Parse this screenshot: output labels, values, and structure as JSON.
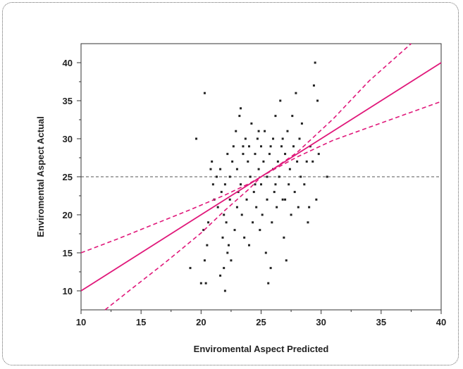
{
  "chart_data": {
    "type": "scatter",
    "title": "",
    "xlabel": "Enviromental Aspect Predicted",
    "ylabel": "Enviromental Aspect  Actual",
    "xlim": [
      10,
      40
    ],
    "ylim": [
      7.5,
      42.5
    ],
    "x_ticks": [
      10,
      15,
      20,
      25,
      30,
      35,
      40
    ],
    "y_ticks": [
      10,
      15,
      20,
      25,
      30,
      35,
      40
    ],
    "grid": false,
    "mean_reference_y": 25,
    "fit_line": {
      "x": [
        10,
        40
      ],
      "y": [
        10,
        40
      ]
    },
    "confidence_band_upper": {
      "x": [
        10,
        13,
        16,
        19,
        22,
        24,
        25,
        26,
        28,
        31,
        34,
        37.5
      ],
      "y": [
        15,
        16.8,
        18.7,
        20.6,
        22.6,
        24.1,
        25.0,
        26.0,
        28.2,
        32.6,
        37.6,
        42.5
      ]
    },
    "confidence_band_lower": {
      "x": [
        12.0,
        14,
        17,
        20,
        22,
        24,
        25,
        26,
        28,
        31,
        34,
        37,
        40
      ],
      "y": [
        7.5,
        10.0,
        13.7,
        17.6,
        20.6,
        23.4,
        25.0,
        25.9,
        27.6,
        29.8,
        31.5,
        33.2,
        34.9
      ]
    },
    "colors": {
      "fit": "#e0187a",
      "points": "#222222",
      "reference": "#555555"
    },
    "points": [
      [
        19.1,
        13
      ],
      [
        19.6,
        30
      ],
      [
        20.0,
        11
      ],
      [
        20.3,
        36
      ],
      [
        20.4,
        11
      ],
      [
        20.3,
        14
      ],
      [
        20.5,
        16
      ],
      [
        20.2,
        18
      ],
      [
        20.6,
        19
      ],
      [
        20.8,
        26
      ],
      [
        20.9,
        27
      ],
      [
        21.0,
        24
      ],
      [
        21.1,
        22
      ],
      [
        21.3,
        25
      ],
      [
        21.4,
        21
      ],
      [
        21.6,
        12
      ],
      [
        21.6,
        26
      ],
      [
        21.7,
        23
      ],
      [
        21.8,
        17
      ],
      [
        21.9,
        20
      ],
      [
        21.9,
        13
      ],
      [
        22.0,
        10
      ],
      [
        22.1,
        19
      ],
      [
        22.2,
        15
      ],
      [
        22.2,
        28
      ],
      [
        22.3,
        16
      ],
      [
        22.4,
        22
      ],
      [
        22.4,
        25
      ],
      [
        22.5,
        14
      ],
      [
        22.6,
        27
      ],
      [
        22.7,
        29
      ],
      [
        22.8,
        18
      ],
      [
        22.9,
        31
      ],
      [
        23.0,
        21
      ],
      [
        23.0,
        26
      ],
      [
        23.2,
        33
      ],
      [
        23.3,
        34
      ],
      [
        23.3,
        24
      ],
      [
        23.4,
        20
      ],
      [
        23.5,
        28
      ],
      [
        23.6,
        17
      ],
      [
        23.7,
        30
      ],
      [
        23.8,
        22
      ],
      [
        23.9,
        27
      ],
      [
        24.0,
        16
      ],
      [
        24.0,
        29
      ],
      [
        24.1,
        25
      ],
      [
        24.2,
        32
      ],
      [
        24.3,
        19
      ],
      [
        24.4,
        23
      ],
      [
        24.5,
        28
      ],
      [
        24.6,
        21
      ],
      [
        24.7,
        30
      ],
      [
        24.8,
        26
      ],
      [
        24.9,
        18
      ],
      [
        25.0,
        24
      ],
      [
        25.0,
        29
      ],
      [
        25.1,
        20
      ],
      [
        25.2,
        27
      ],
      [
        25.3,
        31
      ],
      [
        25.4,
        15
      ],
      [
        25.5,
        25
      ],
      [
        25.5,
        22
      ],
      [
        25.6,
        11
      ],
      [
        25.7,
        28
      ],
      [
        25.8,
        13
      ],
      [
        25.9,
        19
      ],
      [
        26.0,
        26
      ],
      [
        26.0,
        30
      ],
      [
        26.1,
        23
      ],
      [
        26.2,
        33
      ],
      [
        26.3,
        21
      ],
      [
        26.4,
        27
      ],
      [
        26.5,
        25
      ],
      [
        26.6,
        35
      ],
      [
        26.7,
        29
      ],
      [
        26.8,
        22
      ],
      [
        26.9,
        17
      ],
      [
        27.0,
        28
      ],
      [
        27.1,
        14
      ],
      [
        27.2,
        31
      ],
      [
        27.3,
        24
      ],
      [
        27.4,
        26
      ],
      [
        27.5,
        20
      ],
      [
        27.6,
        33
      ],
      [
        27.7,
        29
      ],
      [
        27.8,
        23
      ],
      [
        27.9,
        36
      ],
      [
        28.0,
        27
      ],
      [
        28.1,
        21
      ],
      [
        28.2,
        30
      ],
      [
        28.3,
        25
      ],
      [
        28.4,
        32
      ],
      [
        28.6,
        24
      ],
      [
        28.8,
        27
      ],
      [
        28.9,
        19
      ],
      [
        29.0,
        21
      ],
      [
        29.1,
        29
      ],
      [
        29.3,
        27
      ],
      [
        29.4,
        37
      ],
      [
        29.5,
        40
      ],
      [
        29.6,
        22
      ],
      [
        29.7,
        35
      ],
      [
        29.8,
        28
      ],
      [
        30.5,
        25
      ],
      [
        22.0,
        24
      ],
      [
        23.5,
        29
      ],
      [
        24.5,
        24
      ],
      [
        25.8,
        29
      ],
      [
        26.2,
        24
      ],
      [
        27.0,
        22
      ],
      [
        23.1,
        23
      ],
      [
        24.8,
        31
      ],
      [
        26.8,
        30
      ]
    ]
  }
}
